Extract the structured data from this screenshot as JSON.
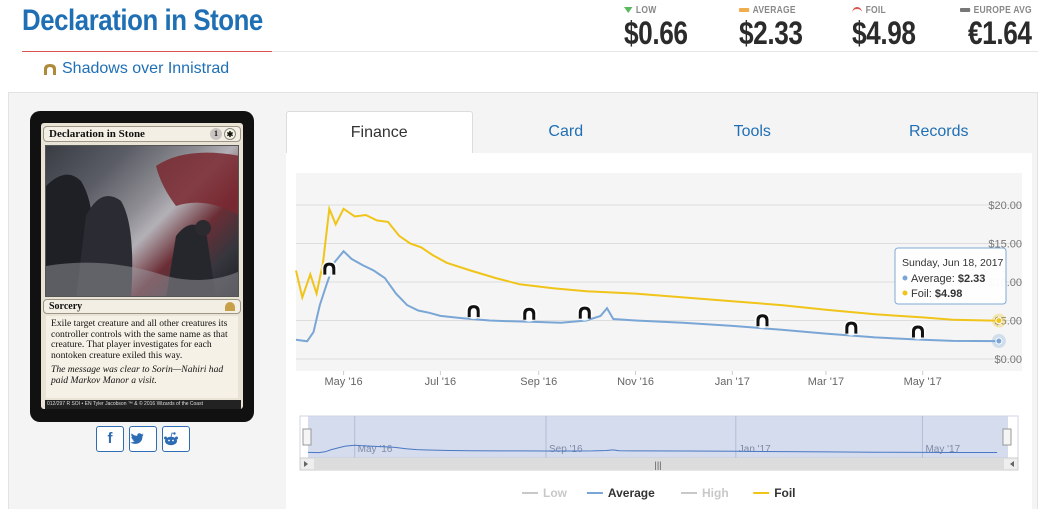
{
  "header": {
    "card_title": "Declaration in Stone",
    "set_name": "Shadows over Innistrad",
    "prices": [
      {
        "label": "LOW",
        "value": "$0.66",
        "indicator_color": "#5cb85c"
      },
      {
        "label": "AVERAGE",
        "value": "$2.33",
        "indicator_color": "#f0ad4e"
      },
      {
        "label": "FOIL",
        "value": "$4.98",
        "indicator_color": "#d9534f"
      },
      {
        "label": "EUROPE AVG",
        "value": "€1.64",
        "indicator_color": "#777777"
      }
    ]
  },
  "card": {
    "name": "Declaration in Stone",
    "mana_cost": [
      "1",
      "W"
    ],
    "type_line": "Sorcery",
    "rules_text": "Exile target creature and all other creatures its controller controls with the same name as that creature. That player investigates for each nontoken creature exiled this way.",
    "flavor_text": "The message was clear to Sorin—Nahiri had paid Markov Manor a visit.",
    "footer": "012/297 R  SOI • EN  Tyler Jacobson   ™ & © 2016 Wizards of the Coast"
  },
  "share": [
    {
      "name": "facebook",
      "glyph": "f"
    },
    {
      "name": "twitter",
      "glyph": "t"
    },
    {
      "name": "reddit",
      "glyph": "r"
    }
  ],
  "tabs": [
    {
      "label": "Finance",
      "active": true
    },
    {
      "label": "Card",
      "active": false
    },
    {
      "label": "Tools",
      "active": false
    },
    {
      "label": "Records",
      "active": false
    }
  ],
  "tooltip": {
    "date": "Sunday, Jun 18, 2017",
    "rows": [
      {
        "label": "Average: ",
        "value": "$2.33",
        "color": "#7aa6d6"
      },
      {
        "label": "Foil: ",
        "value": "$4.98",
        "color": "#f0c419"
      }
    ]
  },
  "chart_data": {
    "type": "line",
    "title": "",
    "xlabel": "",
    "ylabel": "",
    "x_tick_labels": [
      "May '16",
      "Jul '16",
      "Sep '16",
      "Nov '16",
      "Jan '17",
      "Mar '17",
      "May '17"
    ],
    "y_tick_labels": [
      "$20.00",
      "$15.00",
      "$10.00",
      "$5.00",
      "$0.00"
    ],
    "y_ticks": [
      20,
      15,
      10,
      5,
      0
    ],
    "ylim": [
      0,
      21
    ],
    "xlim": [
      "2016-04-01",
      "2017-06-25"
    ],
    "grid": true,
    "legend_position": "bottom",
    "series": [
      {
        "name": "Low",
        "color": "#c8c8c8",
        "visible": false,
        "points": []
      },
      {
        "name": "Average",
        "color": "#7aa6d6",
        "visible": true,
        "points": [
          [
            "2016-04-01",
            2.5
          ],
          [
            "2016-04-08",
            2.3
          ],
          [
            "2016-04-12",
            3.5
          ],
          [
            "2016-04-16",
            7.0
          ],
          [
            "2016-04-20",
            9.5
          ],
          [
            "2016-04-25",
            12.5
          ],
          [
            "2016-05-01",
            14.0
          ],
          [
            "2016-05-06",
            13.0
          ],
          [
            "2016-05-13",
            12.2
          ],
          [
            "2016-05-20",
            11.5
          ],
          [
            "2016-05-27",
            10.5
          ],
          [
            "2016-06-03",
            8.5
          ],
          [
            "2016-06-10",
            7.0
          ],
          [
            "2016-06-17",
            6.3
          ],
          [
            "2016-06-24",
            6.0
          ],
          [
            "2016-07-01",
            5.6
          ],
          [
            "2016-07-15",
            5.3
          ],
          [
            "2016-08-01",
            5.0
          ],
          [
            "2016-08-15",
            4.9
          ],
          [
            "2016-09-01",
            4.8
          ],
          [
            "2016-09-15",
            4.7
          ],
          [
            "2016-10-01",
            5.0
          ],
          [
            "2016-10-10",
            5.6
          ],
          [
            "2016-10-14",
            6.6
          ],
          [
            "2016-10-18",
            5.2
          ],
          [
            "2016-11-01",
            5.0
          ],
          [
            "2016-12-01",
            4.7
          ],
          [
            "2017-01-01",
            4.3
          ],
          [
            "2017-02-01",
            3.8
          ],
          [
            "2017-03-01",
            3.3
          ],
          [
            "2017-04-01",
            2.8
          ],
          [
            "2017-05-01",
            2.5
          ],
          [
            "2017-05-20",
            2.35
          ],
          [
            "2017-06-18",
            2.33
          ]
        ]
      },
      {
        "name": "High",
        "color": "#c8c8c8",
        "visible": false,
        "points": []
      },
      {
        "name": "Foil",
        "color": "#f0c419",
        "visible": true,
        "points": [
          [
            "2016-04-01",
            11.5
          ],
          [
            "2016-04-05",
            8.0
          ],
          [
            "2016-04-10",
            11.0
          ],
          [
            "2016-04-14",
            8.5
          ],
          [
            "2016-04-18",
            12.5
          ],
          [
            "2016-04-22",
            19.5
          ],
          [
            "2016-04-26",
            17.5
          ],
          [
            "2016-05-01",
            19.5
          ],
          [
            "2016-05-08",
            18.5
          ],
          [
            "2016-05-15",
            18.7
          ],
          [
            "2016-05-22",
            18.0
          ],
          [
            "2016-05-29",
            17.8
          ],
          [
            "2016-06-05",
            16.0
          ],
          [
            "2016-06-12",
            15.0
          ],
          [
            "2016-06-19",
            14.5
          ],
          [
            "2016-06-26",
            13.5
          ],
          [
            "2016-07-05",
            12.5
          ],
          [
            "2016-07-20",
            11.5
          ],
          [
            "2016-08-05",
            10.5
          ],
          [
            "2016-08-20",
            9.7
          ],
          [
            "2016-09-10",
            9.2
          ],
          [
            "2016-10-01",
            8.8
          ],
          [
            "2016-11-01",
            8.5
          ],
          [
            "2016-12-01",
            8.0
          ],
          [
            "2017-01-01",
            7.5
          ],
          [
            "2017-02-01",
            7.0
          ],
          [
            "2017-03-01",
            6.4
          ],
          [
            "2017-04-01",
            5.8
          ],
          [
            "2017-05-01",
            5.4
          ],
          [
            "2017-05-20",
            5.1
          ],
          [
            "2017-06-18",
            4.98
          ]
        ]
      }
    ],
    "set_release_markers": [
      {
        "date": "2016-04-22",
        "name": "shadows-over-innistrad"
      },
      {
        "date": "2016-07-22",
        "name": "eldritch-moon"
      },
      {
        "date": "2016-08-26",
        "name": "conspiracy"
      },
      {
        "date": "2016-09-30",
        "name": "kaladesh"
      },
      {
        "date": "2017-01-20",
        "name": "aether-revolt"
      },
      {
        "date": "2017-03-17",
        "name": "modern-masters"
      },
      {
        "date": "2017-04-28",
        "name": "amonkhet"
      }
    ]
  },
  "legend": [
    {
      "label": "Low",
      "color": "#c8c8c8",
      "enabled": false
    },
    {
      "label": "Average",
      "color": "#7aa6d6",
      "enabled": true
    },
    {
      "label": "High",
      "color": "#c8c8c8",
      "enabled": false
    },
    {
      "label": "Foil",
      "color": "#f0c419",
      "enabled": true
    }
  ],
  "navigator": {
    "x_tick_labels": [
      "May '16",
      "Sep '16",
      "Jan '17",
      "May '17"
    ]
  }
}
